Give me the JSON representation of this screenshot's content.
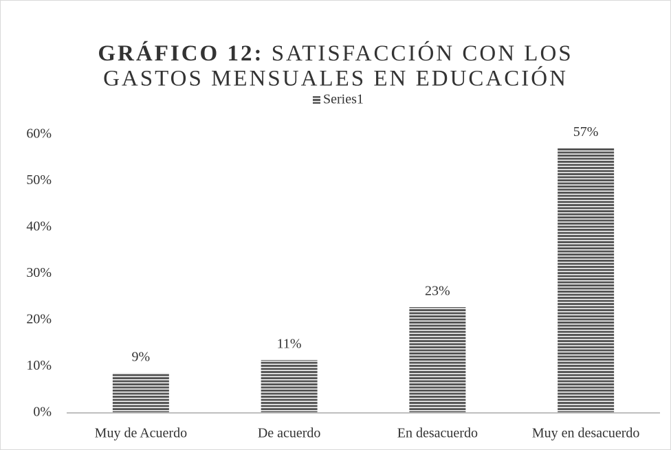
{
  "chart_data": {
    "type": "bar",
    "title_prefix": "GRÁFICO 12:",
    "title_lines": [
      "SATISFACCIÓN CON LOS",
      "GASTOS MENSUALES EN EDUCACIÓN"
    ],
    "categories": [
      "Muy de Acuerdo",
      "De acuerdo",
      "En desacuerdo",
      "Muy en desacuerdo"
    ],
    "series": [
      {
        "name": "Series1",
        "color": "#555555",
        "values": [
          8.6,
          11.4,
          22.8,
          57.1
        ],
        "value_labels": [
          "9%",
          "11%",
          "23%",
          "57%"
        ]
      }
    ],
    "ylim": [
      0,
      60
    ],
    "yticks": [
      {
        "value": 0,
        "label": "0%"
      },
      {
        "value": 10,
        "label": "10%"
      },
      {
        "value": 20,
        "label": "20%"
      },
      {
        "value": 30,
        "label": "30%"
      },
      {
        "value": 40,
        "label": "40%"
      },
      {
        "value": 50,
        "label": "50%"
      },
      {
        "value": 60,
        "label": "60%"
      }
    ],
    "grid": false,
    "legend": "top"
  }
}
